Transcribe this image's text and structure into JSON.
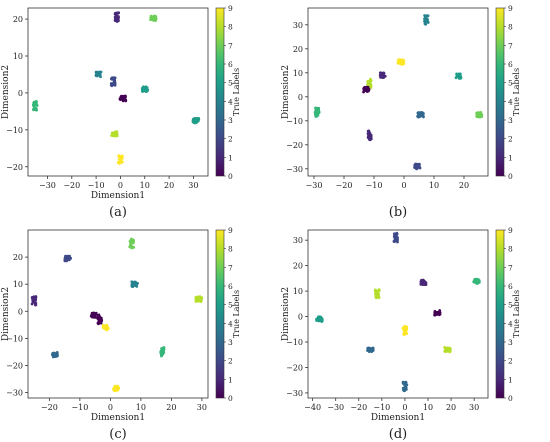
{
  "chart_data": [
    {
      "type": "scatter",
      "caption": "(a)",
      "xlabel": "Dimension1",
      "ylabel": "Dimension2",
      "colorbar_label": "True Labels",
      "xlim": [
        -38,
        36
      ],
      "ylim": [
        -22.5,
        23
      ],
      "xticks": [
        -30,
        -20,
        -10,
        0,
        10,
        20,
        30
      ],
      "yticks": [
        -20,
        -10,
        0,
        10,
        20
      ],
      "colorbar_ticks": [
        0,
        1,
        2,
        3,
        4,
        5,
        6,
        7,
        8,
        9
      ],
      "clusters": [
        {
          "label": 1,
          "x": -1.5,
          "y": 20.5
        },
        {
          "label": 7,
          "x": 13.5,
          "y": 20.2
        },
        {
          "label": 4,
          "x": -9,
          "y": 5
        },
        {
          "label": 2,
          "x": -3,
          "y": 3
        },
        {
          "label": 0,
          "x": 1,
          "y": -1.5
        },
        {
          "label": 5,
          "x": 10,
          "y": 1
        },
        {
          "label": 6,
          "x": -35,
          "y": -3.5
        },
        {
          "label": 5,
          "x": 31,
          "y": -7.5
        },
        {
          "label": 8,
          "x": -2.5,
          "y": -11
        },
        {
          "label": 9,
          "x": 0,
          "y": -18
        }
      ]
    },
    {
      "type": "scatter",
      "caption": "(b)",
      "xlabel": "",
      "ylabel": "Dimension2",
      "colorbar_label": "True Labels",
      "xlim": [
        -32,
        28
      ],
      "ylim": [
        -33,
        37
      ],
      "xticks": [
        -30,
        -20,
        -10,
        0,
        10,
        20
      ],
      "yticks": [
        -30,
        -20,
        -10,
        0,
        10,
        20,
        30
      ],
      "colorbar_ticks": [
        0,
        1,
        2,
        3,
        4,
        5,
        6,
        7,
        8,
        9
      ],
      "clusters": [
        {
          "label": 4,
          "x": 7.5,
          "y": 32
        },
        {
          "label": 9,
          "x": -1,
          "y": 14.5
        },
        {
          "label": 1,
          "x": -7,
          "y": 9
        },
        {
          "label": 8,
          "x": -11.5,
          "y": 5.5
        },
        {
          "label": 0,
          "x": -12.5,
          "y": 3
        },
        {
          "label": 5,
          "x": 18,
          "y": 8.5
        },
        {
          "label": 6,
          "x": -29,
          "y": -6.5
        },
        {
          "label": 7,
          "x": 25,
          "y": -7.5
        },
        {
          "label": 3,
          "x": 5.5,
          "y": -7.5
        },
        {
          "label": 1,
          "x": -11.5,
          "y": -16
        },
        {
          "label": 2,
          "x": 4.5,
          "y": -29
        }
      ]
    },
    {
      "type": "scatter",
      "caption": "(c)",
      "xlabel": "Dimension1",
      "ylabel": "Dimension2",
      "colorbar_label": "True Labels",
      "xlim": [
        -27,
        32
      ],
      "ylim": [
        -32,
        30
      ],
      "xticks": [
        -20,
        -10,
        0,
        10,
        20,
        30
      ],
      "yticks": [
        -30,
        -20,
        -10,
        0,
        10,
        20
      ],
      "colorbar_ticks": [
        0,
        1,
        2,
        3,
        4,
        5,
        6,
        7,
        8,
        9
      ],
      "clusters": [
        {
          "label": 7,
          "x": 7,
          "y": 25
        },
        {
          "label": 2,
          "x": -14,
          "y": 19.5
        },
        {
          "label": 4,
          "x": 8,
          "y": 10
        },
        {
          "label": 1,
          "x": -25,
          "y": 4
        },
        {
          "label": 8,
          "x": 29,
          "y": 4.5
        },
        {
          "label": 0,
          "x": -5.5,
          "y": -1.5
        },
        {
          "label": 0,
          "x": -3.5,
          "y": -3
        },
        {
          "label": 9,
          "x": -1.5,
          "y": -6
        },
        {
          "label": 3,
          "x": -18,
          "y": -16
        },
        {
          "label": 6,
          "x": 17,
          "y": -15
        },
        {
          "label": 9,
          "x": 2,
          "y": -28.5
        }
      ]
    },
    {
      "type": "scatter",
      "caption": "(d)",
      "xlabel": "Dimension1",
      "ylabel": "Dimension2",
      "colorbar_label": "True Labels",
      "xlim": [
        -42,
        36
      ],
      "ylim": [
        -32,
        34
      ],
      "xticks": [
        -40,
        -30,
        -20,
        -10,
        0,
        10,
        20,
        30
      ],
      "yticks": [
        -30,
        -20,
        -10,
        0,
        10,
        20,
        30
      ],
      "colorbar_ticks": [
        0,
        1,
        2,
        3,
        4,
        5,
        6,
        7,
        8,
        9
      ],
      "clusters": [
        {
          "label": 2,
          "x": -4,
          "y": 31
        },
        {
          "label": 6,
          "x": 31,
          "y": 14
        },
        {
          "label": 1,
          "x": 8,
          "y": 13.5
        },
        {
          "label": 8,
          "x": -12,
          "y": 9
        },
        {
          "label": 0,
          "x": 14,
          "y": 1.5
        },
        {
          "label": 5,
          "x": -37,
          "y": -1
        },
        {
          "label": 9,
          "x": 0,
          "y": -5.5
        },
        {
          "label": 3,
          "x": -15,
          "y": -13
        },
        {
          "label": 8,
          "x": 18.5,
          "y": -13
        },
        {
          "label": 3,
          "x": 0,
          "y": -27.5
        }
      ]
    }
  ]
}
